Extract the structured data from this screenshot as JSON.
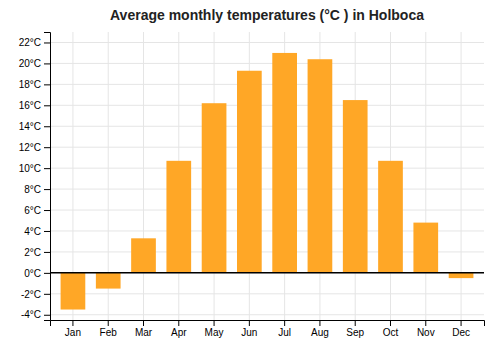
{
  "chart_data": {
    "type": "bar",
    "title": "Average monthly temperatures (°C ) in Holboca",
    "categories": [
      "Jan",
      "Feb",
      "Mar",
      "Apr",
      "May",
      "Jun",
      "Jul",
      "Aug",
      "Sep",
      "Oct",
      "Nov",
      "Dec"
    ],
    "values": [
      -3.5,
      -1.5,
      3.3,
      10.7,
      16.2,
      19.3,
      21.0,
      20.4,
      16.5,
      10.7,
      4.8,
      -0.5
    ],
    "color": "#FFA726",
    "ylim": [
      -4.5,
      23
    ],
    "yticks": [
      {
        "value": -4,
        "label": "-4°C"
      },
      {
        "value": -2,
        "label": "-2°C"
      },
      {
        "value": 0,
        "label": "0°C"
      },
      {
        "value": 2,
        "label": "2°C"
      },
      {
        "value": 4,
        "label": "4°C"
      },
      {
        "value": 6,
        "label": "6°C"
      },
      {
        "value": 8,
        "label": "8°C"
      },
      {
        "value": 10,
        "label": "10°C"
      },
      {
        "value": 12,
        "label": "12°C"
      },
      {
        "value": 14,
        "label": "14°C"
      },
      {
        "value": 16,
        "label": "16°C"
      },
      {
        "value": 18,
        "label": "18°C"
      },
      {
        "value": 20,
        "label": "20°C"
      },
      {
        "value": 22,
        "label": "22°C"
      }
    ],
    "grid": true
  }
}
